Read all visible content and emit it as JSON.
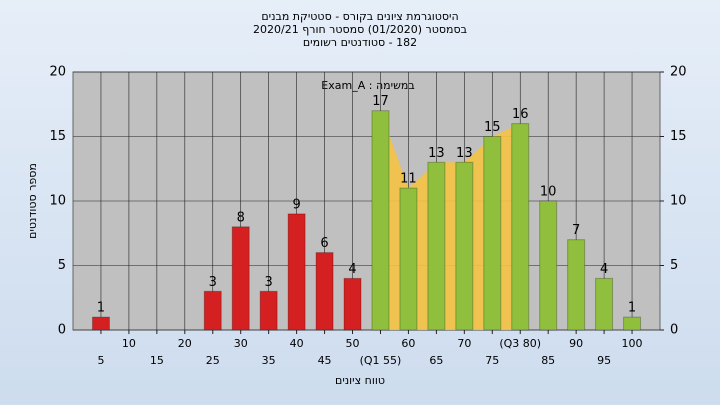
{
  "chart_data": {
    "type": "bar",
    "title": "היסטוגרמת ציונים בקורס - סטטיקת מבנים",
    "subtitle": "בסמסטר (01/2020) סמסטר חורף 2020/21",
    "subtitle2": "182 - סטודנטים רשומים",
    "annotation": "במשימה : Exam_A",
    "x_label": "טווח ציונים",
    "y_label": "מספר סטודנטים",
    "categories": [
      "5",
      "10",
      "15",
      "20",
      "25",
      "30",
      "35",
      "40",
      "45",
      "50",
      "(Q1 55)",
      "60",
      "65",
      "70",
      "75",
      "(Q3 80)",
      "85",
      "90",
      "95",
      "100"
    ],
    "values": [
      1,
      0,
      0,
      0,
      3,
      8,
      3,
      9,
      6,
      4,
      17,
      11,
      13,
      13,
      15,
      16,
      10,
      7,
      4,
      1
    ],
    "colors": [
      "#d42020",
      "#d42020",
      "#d42020",
      "#d42020",
      "#d42020",
      "#d42020",
      "#d42020",
      "#d42020",
      "#d42020",
      "#d42020",
      "#8fbf3c",
      "#8fbf3c",
      "#8fbf3c",
      "#8fbf3c",
      "#8fbf3c",
      "#8fbf3c",
      "#8fbf3c",
      "#8fbf3c",
      "#8fbf3c",
      "#8fbf3c"
    ],
    "iqr_color": "#f5c242",
    "ylim": [
      0,
      20
    ],
    "yticks": [
      0,
      5,
      10,
      15,
      20
    ],
    "y2lim": [
      0,
      20
    ],
    "y2ticks": [
      0,
      5,
      10,
      15,
      20
    ],
    "grid": true
  }
}
